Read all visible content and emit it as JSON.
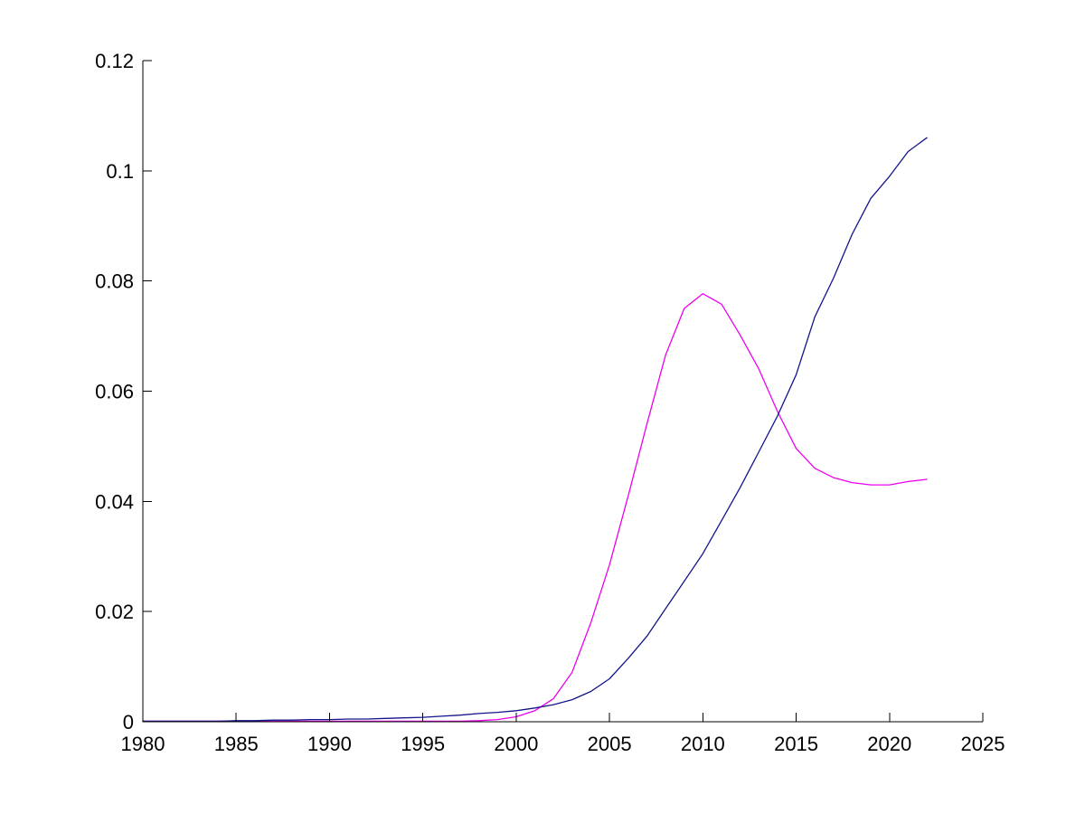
{
  "figure": {
    "background_color": "#ffffff",
    "axis_color": "#000000"
  },
  "chart_data": {
    "type": "line",
    "title": "",
    "xlabel": "",
    "ylabel": "",
    "grid": false,
    "xlim": [
      1980,
      2025
    ],
    "ylim": [
      0,
      0.12
    ],
    "xticks": {
      "values": [
        1980,
        1985,
        1990,
        1995,
        2000,
        2005,
        2010,
        2015,
        2020,
        2025
      ],
      "labels": [
        "1980",
        "1985",
        "1990",
        "1995",
        "2000",
        "2005",
        "2010",
        "2015",
        "2020",
        "2025"
      ]
    },
    "yticks": {
      "values": [
        0,
        0.02,
        0.04,
        0.06,
        0.08,
        0.1,
        0.12
      ],
      "labels": [
        "0",
        "0.02",
        "0.04",
        "0.06",
        "0.08",
        "0.1",
        "0.12"
      ]
    },
    "x": [
      1980,
      1981,
      1982,
      1983,
      1984,
      1985,
      1986,
      1987,
      1988,
      1989,
      1990,
      1991,
      1992,
      1993,
      1994,
      1995,
      1996,
      1997,
      1998,
      1999,
      2000,
      2001,
      2002,
      2003,
      2004,
      2005,
      2006,
      2007,
      2008,
      2009,
      2010,
      2011,
      2012,
      2013,
      2014,
      2015,
      2016,
      2017,
      2018,
      2019,
      2020,
      2021,
      2022
    ],
    "series": [
      {
        "name": "magenta-line",
        "color": "#EE00EE",
        "values": [
          0.0001,
          0.0001,
          0.0001,
          0.0001,
          0.0001,
          0.0001,
          0.0001,
          0.0001,
          0.0001,
          0.0001,
          0.0001,
          0.0001,
          0.0001,
          0.0001,
          0.0001,
          0.0001,
          0.0001,
          0.0001,
          0.0002,
          0.0004,
          0.0009,
          0.002,
          0.0042,
          0.009,
          0.018,
          0.0285,
          0.041,
          0.054,
          0.0665,
          0.075,
          0.0777,
          0.0758,
          0.0702,
          0.064,
          0.0563,
          0.0496,
          0.046,
          0.0443,
          0.0434,
          0.043,
          0.043,
          0.0436,
          0.044
        ]
      },
      {
        "name": "blue-line",
        "color": "#14148C",
        "values": [
          0.0001,
          0.0001,
          0.0001,
          0.0001,
          0.0001,
          0.0002,
          0.0002,
          0.0003,
          0.0003,
          0.0004,
          0.0004,
          0.0005,
          0.0005,
          0.0006,
          0.0007,
          0.0008,
          0.001,
          0.0012,
          0.0015,
          0.0017,
          0.002,
          0.0025,
          0.0031,
          0.004,
          0.0055,
          0.0078,
          0.0115,
          0.0155,
          0.0205,
          0.0255,
          0.0305,
          0.0365,
          0.0425,
          0.049,
          0.0555,
          0.063,
          0.0735,
          0.0805,
          0.0885,
          0.095,
          0.099,
          0.1035,
          0.106
        ]
      }
    ]
  }
}
